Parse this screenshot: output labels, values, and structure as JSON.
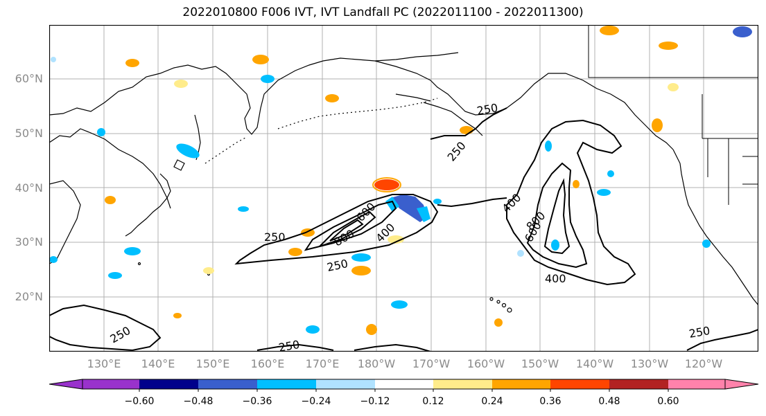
{
  "title": "2022010800 F006 IVT, IVT Landfall PC (2022011100 - 2022011300)",
  "lat_labels": [
    "60°N",
    "50°N",
    "40°N",
    "30°N",
    "20°N"
  ],
  "lon_labels": [
    "130°E",
    "140°E",
    "150°E",
    "160°E",
    "170°E",
    "180°W",
    "170°W",
    "160°W",
    "150°W",
    "140°W",
    "130°W",
    "120°W"
  ],
  "contour_labels": [
    "250",
    "250",
    "250",
    "250",
    "250",
    "250",
    "250",
    "400",
    "400",
    "400",
    "600",
    "600",
    "800",
    "800"
  ],
  "colorbar": {
    "colors": [
      "#9932cc",
      "#00008b",
      "#3a5fcd",
      "#00bfff",
      "#b0e2ff",
      "#ffffff",
      "#ffec8b",
      "#ffa500",
      "#ff4500",
      "#b22222",
      "#ff82ab"
    ],
    "tick_labels": [
      "−0.60",
      "−0.48",
      "−0.36",
      "−0.24",
      "−0.12",
      "0.12",
      "0.24",
      "0.36",
      "0.48",
      "0.60"
    ]
  }
}
